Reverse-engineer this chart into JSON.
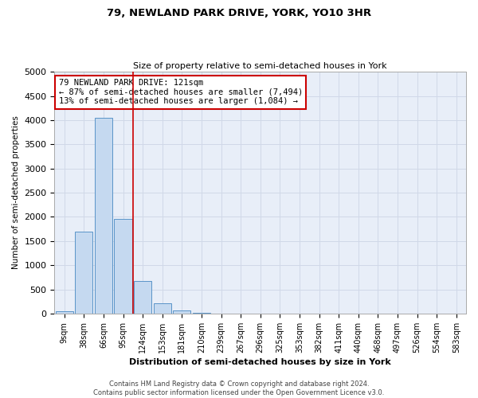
{
  "title": "79, NEWLAND PARK DRIVE, YORK, YO10 3HR",
  "subtitle": "Size of property relative to semi-detached houses in York",
  "xlabel": "Distribution of semi-detached houses by size in York",
  "ylabel": "Number of semi-detached properties",
  "bar_labels": [
    "9sqm",
    "38sqm",
    "66sqm",
    "95sqm",
    "124sqm",
    "153sqm",
    "181sqm",
    "210sqm",
    "239sqm",
    "267sqm",
    "296sqm",
    "325sqm",
    "353sqm",
    "382sqm",
    "411sqm",
    "440sqm",
    "468sqm",
    "497sqm",
    "526sqm",
    "554sqm",
    "583sqm"
  ],
  "bar_values": [
    50,
    1700,
    4050,
    1950,
    680,
    220,
    70,
    20,
    5,
    0,
    0,
    0,
    0,
    0,
    0,
    0,
    0,
    0,
    0,
    0,
    0
  ],
  "bar_color": "#c5d9f0",
  "bar_edge_color": "#5a94c8",
  "annotation_text": "79 NEWLAND PARK DRIVE: 121sqm\n← 87% of semi-detached houses are smaller (7,494)\n13% of semi-detached houses are larger (1,084) →",
  "annotation_box_color": "#ffffff",
  "annotation_box_edge": "#cc0000",
  "vline_color": "#cc0000",
  "vline_x": 3.5,
  "ylim": [
    0,
    5000
  ],
  "yticks": [
    0,
    500,
    1000,
    1500,
    2000,
    2500,
    3000,
    3500,
    4000,
    4500,
    5000
  ],
  "grid_color": "#d0d8e8",
  "bg_color": "#e8eef8",
  "footer": "Contains HM Land Registry data © Crown copyright and database right 2024.\nContains public sector information licensed under the Open Government Licence v3.0."
}
